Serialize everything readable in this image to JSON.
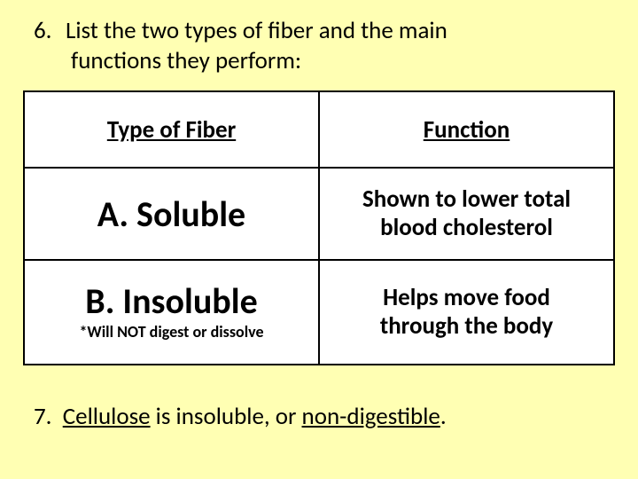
{
  "q6": {
    "number": "6.",
    "line1": "List the two types of fiber and the main",
    "line2": "functions they perform:"
  },
  "table": {
    "header": {
      "type": "Type of Fiber",
      "function": "Function"
    },
    "rowA": {
      "type": "A.  Soluble",
      "function_l1": "Shown to lower total",
      "function_l2": "blood cholesterol"
    },
    "rowB": {
      "type": "B.  Insoluble",
      "note": "*Will NOT digest or dissolve",
      "function_l1": "Helps move food",
      "function_l2": "through the body"
    }
  },
  "q7": {
    "number": "7.",
    "word1": "Cellulose",
    "mid": " is insoluble, or ",
    "word2": "non-digestible",
    "end": "."
  },
  "colors": {
    "page_bg": "#ffffb3",
    "table_bg": "#ffffff",
    "border": "#000000",
    "text": "#000000"
  }
}
